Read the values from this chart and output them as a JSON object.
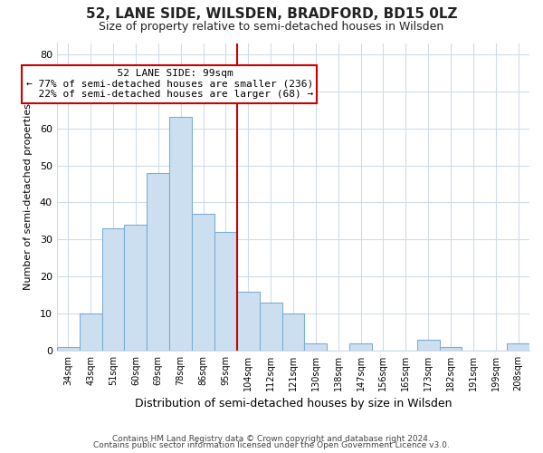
{
  "title1": "52, LANE SIDE, WILSDEN, BRADFORD, BD15 0LZ",
  "title2": "Size of property relative to semi-detached houses in Wilsden",
  "xlabel": "Distribution of semi-detached houses by size in Wilsden",
  "ylabel": "Number of semi-detached properties",
  "footer1": "Contains HM Land Registry data © Crown copyright and database right 2024.",
  "footer2": "Contains public sector information licensed under the Open Government Licence v3.0.",
  "bin_labels": [
    "34sqm",
    "43sqm",
    "51sqm",
    "60sqm",
    "69sqm",
    "78sqm",
    "86sqm",
    "95sqm",
    "104sqm",
    "112sqm",
    "121sqm",
    "130sqm",
    "138sqm",
    "147sqm",
    "156sqm",
    "165sqm",
    "173sqm",
    "182sqm",
    "191sqm",
    "199sqm",
    "208sqm"
  ],
  "bar_heights": [
    1,
    10,
    33,
    34,
    48,
    63,
    37,
    32,
    16,
    13,
    10,
    2,
    0,
    2,
    0,
    0,
    3,
    1,
    0,
    0,
    2
  ],
  "bar_color": "#ccdff0",
  "bar_edge_color": "#7bafd4",
  "property_label": "52 LANE SIDE: 99sqm",
  "pct_smaller": 77,
  "count_smaller": 236,
  "pct_larger": 22,
  "count_larger": 68,
  "vline_color": "#cc0000",
  "annotation_box_edge": "#cc0000",
  "ylim": [
    0,
    83
  ],
  "yticks": [
    0,
    10,
    20,
    30,
    40,
    50,
    60,
    70,
    80
  ],
  "background_color": "#ffffff",
  "plot_background": "#ffffff",
  "grid_color": "#d0dce8"
}
